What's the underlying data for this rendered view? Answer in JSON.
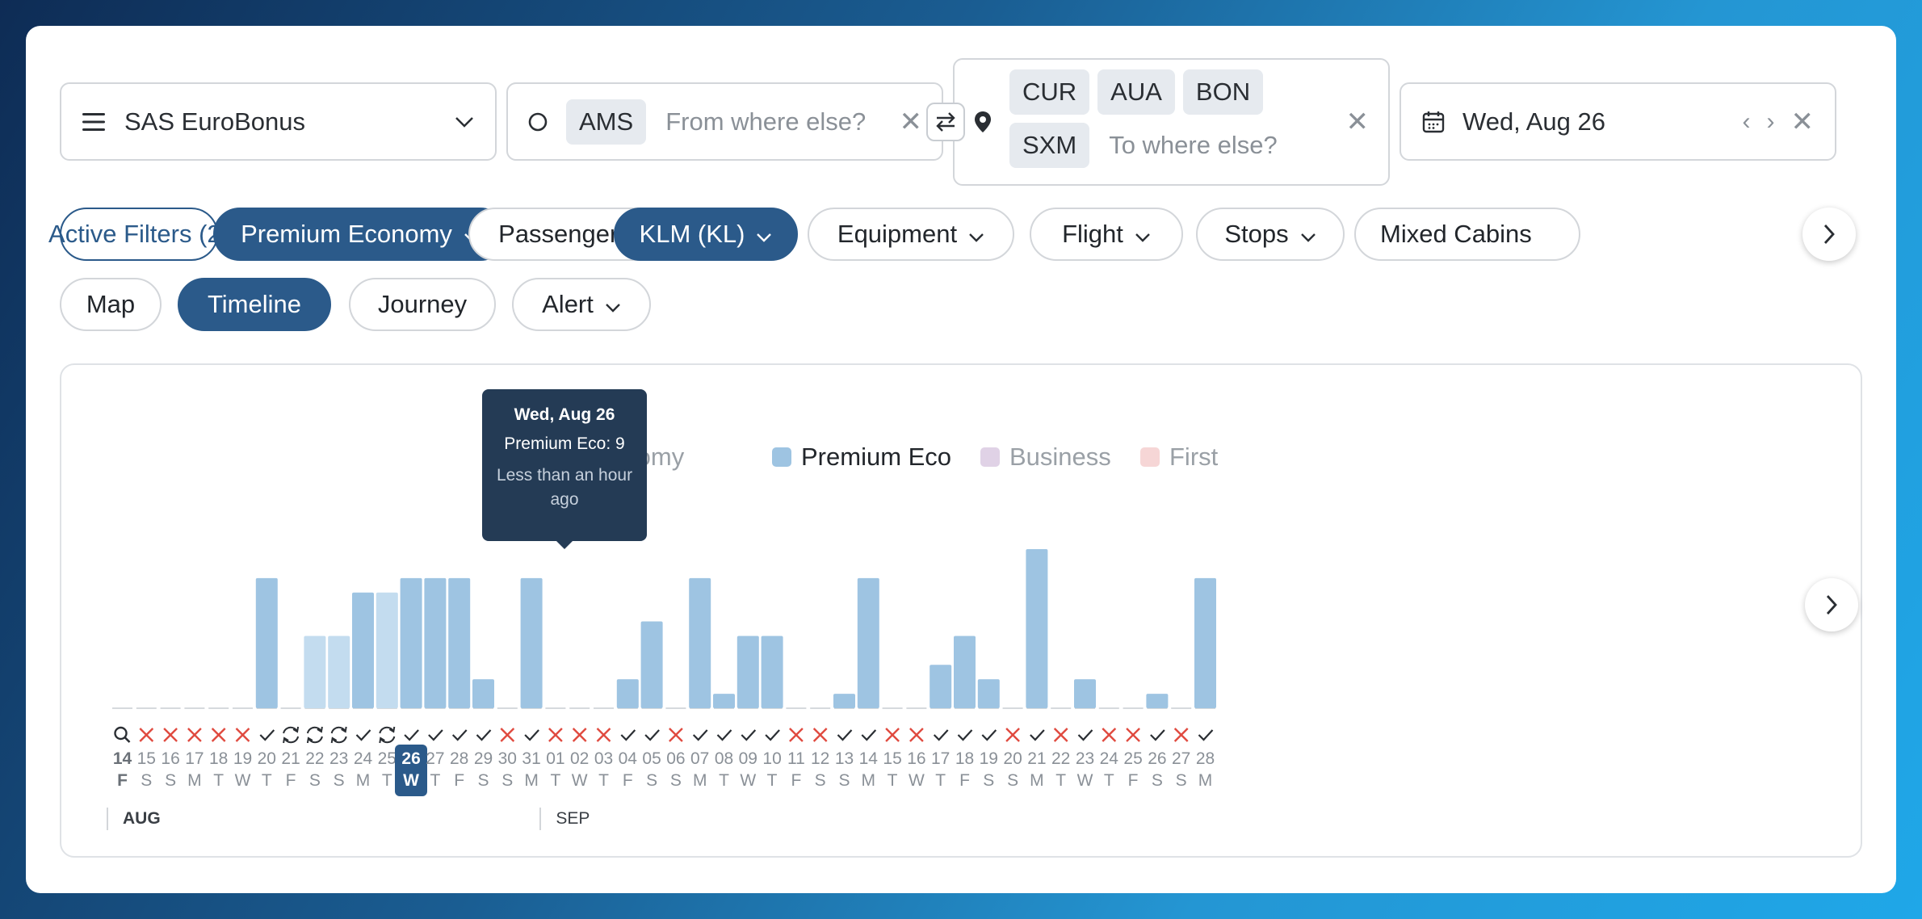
{
  "program": {
    "title": "SAS EuroBonus"
  },
  "origin": {
    "airports": [
      "AMS"
    ],
    "placeholder": "From where else?"
  },
  "destination": {
    "airports": [
      "CUR",
      "AUA",
      "BON",
      "SXM"
    ],
    "placeholder": "To where else?"
  },
  "date": {
    "label": "Wed, Aug 26"
  },
  "filters": [
    {
      "label": "Active Filters (2)",
      "style": "outline-blue",
      "chevron": false
    },
    {
      "label": "Premium Economy",
      "style": "active",
      "chevron": true
    },
    {
      "label": "Passengers",
      "style": "default",
      "chevron": true
    },
    {
      "label": "KLM (KL)",
      "style": "active",
      "chevron": true
    },
    {
      "label": "Equipment",
      "style": "default",
      "chevron": true
    },
    {
      "label": "Flight",
      "style": "default",
      "chevron": true
    },
    {
      "label": "Stops",
      "style": "default",
      "chevron": true
    },
    {
      "label": "Mixed Cabins",
      "style": "default",
      "chevron": false
    }
  ],
  "views": [
    {
      "label": "Map",
      "active": false,
      "chevron": false
    },
    {
      "label": "Timeline",
      "active": true,
      "chevron": false
    },
    {
      "label": "Journey",
      "active": false,
      "chevron": false
    },
    {
      "label": "Alert",
      "active": false,
      "chevron": true
    }
  ],
  "legend": [
    {
      "label": "Economy",
      "color": "#cfeedd",
      "dim": true
    },
    {
      "label": "Premium Eco",
      "color": "#9ec4e2",
      "dim": false
    },
    {
      "label": "Business",
      "color": "#e0d2e6",
      "dim": true
    },
    {
      "label": "First",
      "color": "#f6d6d6",
      "dim": true
    }
  ],
  "tooltip": {
    "date": "Wed, Aug 26",
    "value": "Premium Eco: 9",
    "updated": "Less than an hour ago"
  },
  "colors": {
    "accent": "#2b5a8a",
    "bar": "#9ec4e2",
    "bar_light": "#c3dcef",
    "error": "#e04a3f"
  },
  "chart_data": {
    "type": "bar",
    "series": [
      {
        "name": "Premium Eco"
      }
    ],
    "ylim": [
      0,
      11
    ],
    "selected_index": 12,
    "days": [
      {
        "d": "14",
        "w": "F",
        "v": 0,
        "s": "search"
      },
      {
        "d": "15",
        "w": "S",
        "v": 0,
        "s": "none"
      },
      {
        "d": "16",
        "w": "S",
        "v": 0,
        "s": "none"
      },
      {
        "d": "17",
        "w": "M",
        "v": 0,
        "s": "none"
      },
      {
        "d": "18",
        "w": "T",
        "v": 0,
        "s": "none"
      },
      {
        "d": "19",
        "w": "W",
        "v": 0,
        "s": "none"
      },
      {
        "d": "20",
        "w": "T",
        "v": 9,
        "s": "ok"
      },
      {
        "d": "21",
        "w": "F",
        "v": 0,
        "s": "refresh"
      },
      {
        "d": "22",
        "w": "S",
        "v": 5,
        "s": "refresh",
        "light": true
      },
      {
        "d": "23",
        "w": "S",
        "v": 5,
        "s": "refresh",
        "light": true
      },
      {
        "d": "24",
        "w": "M",
        "v": 8,
        "s": "ok"
      },
      {
        "d": "25",
        "w": "T",
        "v": 8,
        "s": "refresh",
        "light": true
      },
      {
        "d": "26",
        "w": "W",
        "v": 9,
        "s": "ok"
      },
      {
        "d": "27",
        "w": "T",
        "v": 9,
        "s": "ok"
      },
      {
        "d": "28",
        "w": "F",
        "v": 9,
        "s": "ok"
      },
      {
        "d": "29",
        "w": "S",
        "v": 2,
        "s": "ok"
      },
      {
        "d": "30",
        "w": "S",
        "v": 0,
        "s": "none"
      },
      {
        "d": "31",
        "w": "M",
        "v": 9,
        "s": "ok"
      },
      {
        "d": "01",
        "w": "T",
        "v": 0,
        "s": "none"
      },
      {
        "d": "02",
        "w": "W",
        "v": 0,
        "s": "none"
      },
      {
        "d": "03",
        "w": "T",
        "v": 0,
        "s": "none"
      },
      {
        "d": "04",
        "w": "F",
        "v": 2,
        "s": "ok"
      },
      {
        "d": "05",
        "w": "S",
        "v": 6,
        "s": "ok"
      },
      {
        "d": "06",
        "w": "S",
        "v": 0,
        "s": "none"
      },
      {
        "d": "07",
        "w": "M",
        "v": 9,
        "s": "ok"
      },
      {
        "d": "08",
        "w": "T",
        "v": 1,
        "s": "ok"
      },
      {
        "d": "09",
        "w": "W",
        "v": 5,
        "s": "ok"
      },
      {
        "d": "10",
        "w": "T",
        "v": 5,
        "s": "ok"
      },
      {
        "d": "11",
        "w": "F",
        "v": 0,
        "s": "none"
      },
      {
        "d": "12",
        "w": "S",
        "v": 0,
        "s": "none"
      },
      {
        "d": "13",
        "w": "S",
        "v": 1,
        "s": "ok"
      },
      {
        "d": "14",
        "w": "M",
        "v": 9,
        "s": "ok"
      },
      {
        "d": "15",
        "w": "T",
        "v": 0,
        "s": "none"
      },
      {
        "d": "16",
        "w": "W",
        "v": 0,
        "s": "none"
      },
      {
        "d": "17",
        "w": "T",
        "v": 3,
        "s": "ok"
      },
      {
        "d": "18",
        "w": "F",
        "v": 5,
        "s": "ok"
      },
      {
        "d": "19",
        "w": "S",
        "v": 2,
        "s": "ok"
      },
      {
        "d": "20",
        "w": "S",
        "v": 0,
        "s": "none"
      },
      {
        "d": "21",
        "w": "M",
        "v": 11,
        "s": "ok"
      },
      {
        "d": "22",
        "w": "T",
        "v": 0,
        "s": "none"
      },
      {
        "d": "23",
        "w": "W",
        "v": 2,
        "s": "ok"
      },
      {
        "d": "24",
        "w": "T",
        "v": 0,
        "s": "none"
      },
      {
        "d": "25",
        "w": "F",
        "v": 0,
        "s": "none"
      },
      {
        "d": "26",
        "w": "S",
        "v": 1,
        "s": "ok"
      },
      {
        "d": "27",
        "w": "S",
        "v": 0,
        "s": "none"
      },
      {
        "d": "28",
        "w": "M",
        "v": 9,
        "s": "ok"
      }
    ],
    "months": [
      {
        "label": "AUG",
        "start_index": 0
      },
      {
        "label": "SEP",
        "start_index": 18
      }
    ]
  }
}
